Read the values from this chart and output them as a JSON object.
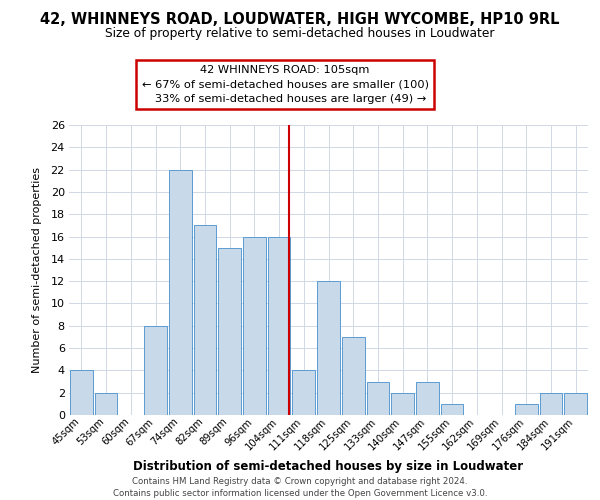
{
  "title": "42, WHINNEYS ROAD, LOUDWATER, HIGH WYCOMBE, HP10 9RL",
  "subtitle": "Size of property relative to semi-detached houses in Loudwater",
  "xlabel": "Distribution of semi-detached houses by size in Loudwater",
  "ylabel": "Number of semi-detached properties",
  "bin_labels": [
    "45sqm",
    "53sqm",
    "60sqm",
    "67sqm",
    "74sqm",
    "82sqm",
    "89sqm",
    "96sqm",
    "104sqm",
    "111sqm",
    "118sqm",
    "125sqm",
    "133sqm",
    "140sqm",
    "147sqm",
    "155sqm",
    "162sqm",
    "169sqm",
    "176sqm",
    "184sqm",
    "191sqm"
  ],
  "bar_values": [
    4,
    2,
    0,
    8,
    22,
    17,
    15,
    16,
    16,
    4,
    12,
    7,
    3,
    2,
    3,
    1,
    0,
    0,
    1,
    2,
    2
  ],
  "bar_color": "#c8d9ea",
  "bar_edgecolor": "#5b9bd5",
  "ylim": [
    0,
    26
  ],
  "yticks": [
    0,
    2,
    4,
    6,
    8,
    10,
    12,
    14,
    16,
    18,
    20,
    22,
    24,
    26
  ],
  "property_line_bin": 8,
  "ann_title": "42 WHINNEYS ROAD: 105sqm",
  "ann_line2": "← 67% of semi-detached houses are smaller (100)",
  "ann_line3": "   33% of semi-detached houses are larger (49) →",
  "annotation_box_color": "#cc0000",
  "annotation_box_facecolor": "#ffffff",
  "footer_line1": "Contains HM Land Registry data © Crown copyright and database right 2024.",
  "footer_line2": "Contains public sector information licensed under the Open Government Licence v3.0.",
  "background_color": "#ffffff",
  "grid_color": "#d0d8e4"
}
